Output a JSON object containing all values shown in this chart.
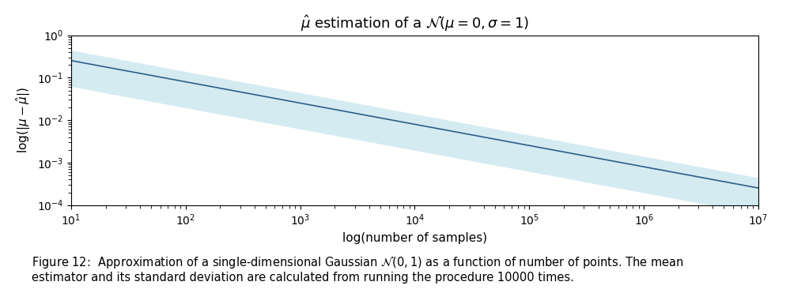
{
  "title": "$\\hat{\\mu}$ estimation of a $\\mathcal{N}(\\mu = 0, \\sigma = 1)$",
  "xlabel": "log(number of samples)",
  "ylabel": "log$(|\\mu - \\hat{\\mu}|)$",
  "x_min": 10,
  "x_max": 10000000.0,
  "y_min": 0.0001,
  "y_max": 1.0,
  "line_color": "#2c5f8a",
  "fill_color": "#add8e6",
  "fill_alpha": 0.5,
  "line_width": 1.2,
  "n_points": 300,
  "caption_fontsize": 10.5,
  "title_fontsize": 13,
  "axis_label_fontsize": 11
}
